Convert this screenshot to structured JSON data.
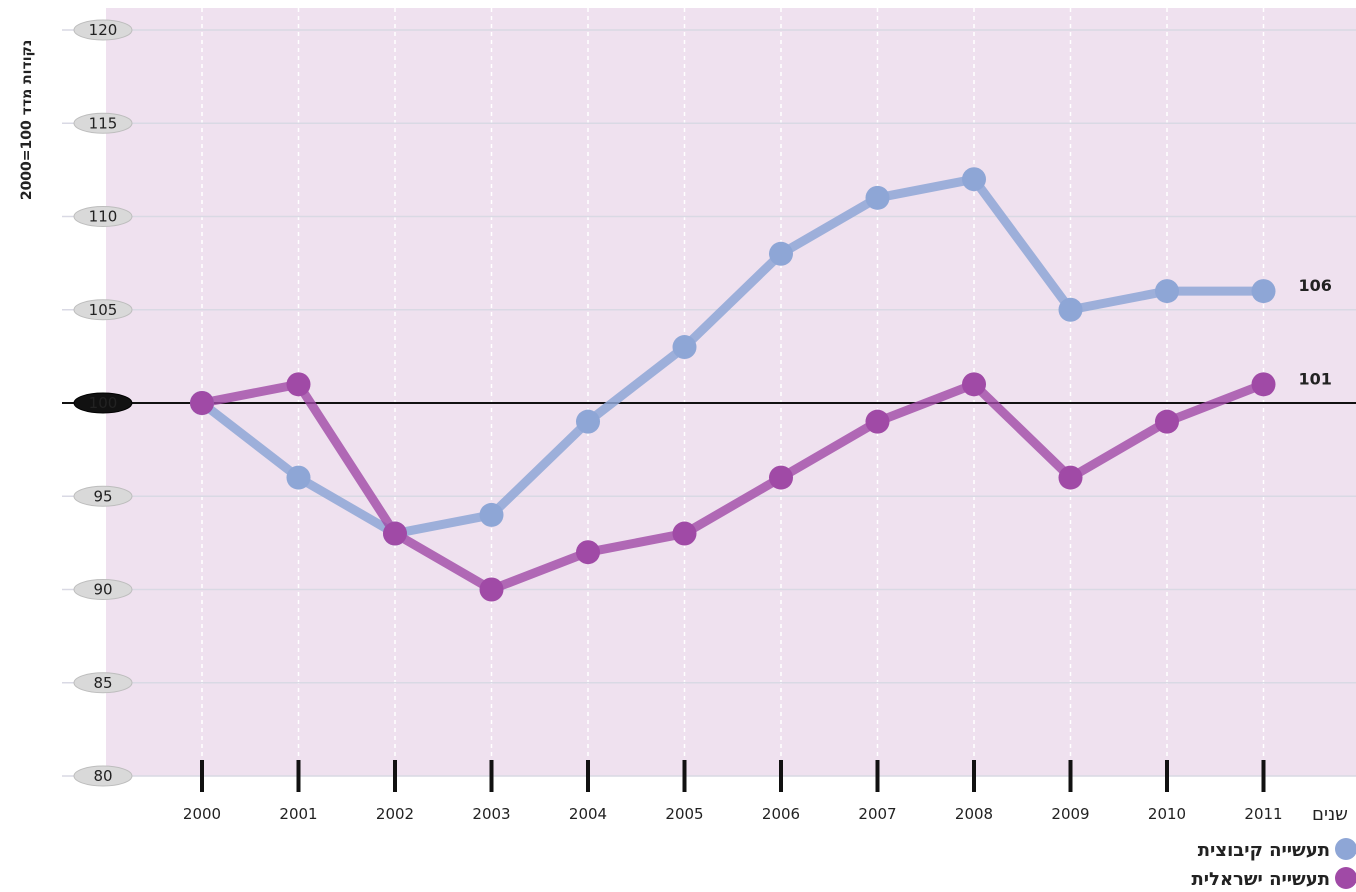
{
  "chart_data": {
    "type": "line",
    "title": "",
    "ylabel": "נקודות מדד 100=2000",
    "xlabel": "שנים",
    "ylim": [
      80,
      120
    ],
    "yticks": [
      "80",
      "85",
      "90",
      "95",
      "100",
      "105",
      "110",
      "115",
      "120"
    ],
    "categories": [
      "2000",
      "2001",
      "2002",
      "2003",
      "2004",
      "2005",
      "2006",
      "2007",
      "2008",
      "2009",
      "2010",
      "2011"
    ],
    "reference_line": 100,
    "grid": true,
    "legend_position": "bottom-right",
    "series": [
      {
        "name": "תעשייה קיבוצית",
        "color": "#8ea6d6",
        "values": [
          100,
          96,
          93,
          94,
          99,
          103,
          108,
          111,
          112,
          105,
          106,
          106
        ],
        "end_label": "106"
      },
      {
        "name": "תעשייה ישראלית",
        "color": "#a04aa6",
        "values": [
          100,
          101,
          93,
          90,
          92,
          93,
          96,
          99,
          101,
          96,
          99,
          101
        ],
        "end_label": "101"
      }
    ]
  },
  "colors": {
    "plot_background": "#efe1ef",
    "grid": "#d9d9e4",
    "reference_line": "#111111",
    "tick_pill": "#d9d9d9",
    "reference_pill": "#111111"
  }
}
